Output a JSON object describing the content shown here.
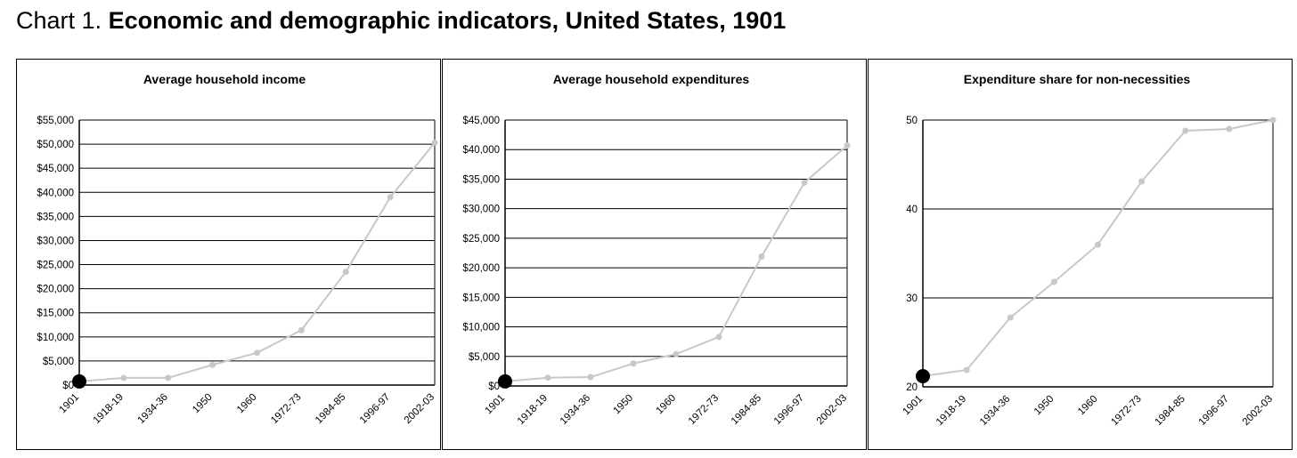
{
  "header": {
    "prefix": "Chart 1.",
    "title": "Economic and demographic indicators, United States, 1901"
  },
  "colors": {
    "line": "#c8c8c8",
    "grid": "#000000",
    "highlight": "#000000"
  },
  "chart_data": [
    {
      "type": "line",
      "title": "Average household income",
      "categories": [
        "1901",
        "1918-19",
        "1934-36",
        "1950",
        "1960",
        "1972-73",
        "1984-85",
        "1996-97",
        "2002-03"
      ],
      "values": [
        750,
        1500,
        1500,
        4200,
        6700,
        11400,
        23500,
        39000,
        50300
      ],
      "highlight_index": 0,
      "ylim": [
        0,
        55000
      ],
      "yticks": [
        0,
        5000,
        10000,
        15000,
        20000,
        25000,
        30000,
        35000,
        40000,
        45000,
        50000,
        55000
      ],
      "ytick_labels": [
        "$0",
        "$5,000",
        "$10,000",
        "$15,000",
        "$20,000",
        "$25,000",
        "$30,000",
        "$35,000",
        "$40,000",
        "$45,000",
        "$50,000",
        "$55,000"
      ],
      "grid": true
    },
    {
      "type": "line",
      "title": "Average household expenditures",
      "categories": [
        "1901",
        "1918-19",
        "1934-36",
        "1950",
        "1960",
        "1972-73",
        "1984-85",
        "1996-97",
        "2002-03"
      ],
      "values": [
        770,
        1400,
        1500,
        3800,
        5400,
        8300,
        21900,
        34400,
        40700
      ],
      "highlight_index": 0,
      "ylim": [
        0,
        45000
      ],
      "yticks": [
        0,
        5000,
        10000,
        15000,
        20000,
        25000,
        30000,
        35000,
        40000,
        45000
      ],
      "ytick_labels": [
        "$0",
        "$5,000",
        "$10,000",
        "$15,000",
        "$20,000",
        "$25,000",
        "$30,000",
        "$35,000",
        "$40,000",
        "$45,000"
      ],
      "grid": true
    },
    {
      "type": "line",
      "title": "Expenditure share for non-necessities",
      "categories": [
        "1901",
        "1918-19",
        "1934-36",
        "1950",
        "1960",
        "1972-73",
        "1984-85",
        "1996-97",
        "2002-03"
      ],
      "values": [
        21.2,
        21.9,
        27.8,
        31.8,
        36.0,
        43.1,
        48.8,
        49.0,
        50.0
      ],
      "highlight_index": 0,
      "ylim": [
        20,
        50
      ],
      "yticks": [
        20,
        30,
        40,
        50
      ],
      "ytick_labels": [
        "20",
        "30",
        "40",
        "50"
      ],
      "grid": true
    }
  ]
}
